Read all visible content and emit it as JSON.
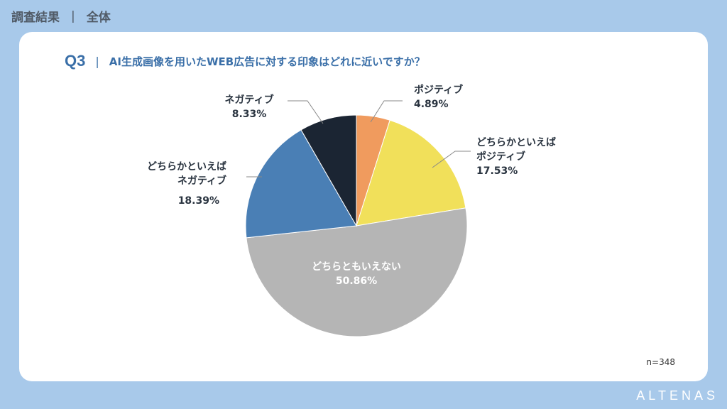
{
  "header": {
    "title": "調査結果",
    "separator": "|",
    "scope": "全体"
  },
  "question": {
    "number": "Q3",
    "separator": "|",
    "text": "AI生成画像を用いたWEB広告に対する印象はどれに近いですか？"
  },
  "sample": "n=348",
  "brand": "ALTENAS",
  "chart_data": {
    "type": "pie",
    "slices": [
      {
        "label": "ポジティブ",
        "value": 4.89,
        "pct_label": "4.89%",
        "color": "#f09b5e"
      },
      {
        "label": "どちらかといえばポジティブ",
        "value": 17.53,
        "pct_label": "17.53%",
        "color": "#f1e05a"
      },
      {
        "label": "どちらともいえない",
        "value": 50.86,
        "pct_label": "50.86%",
        "color": "#b5b5b5"
      },
      {
        "label": "どちらかといえばネガティブ",
        "value": 18.39,
        "pct_label": "18.39%",
        "color": "#4a7fb5"
      },
      {
        "label": "ネガティブ",
        "value": 8.33,
        "pct_label": "8.33%",
        "color": "#1b2533"
      }
    ],
    "start": "12 o'clock",
    "direction": "clockwise",
    "leader_lines": true
  }
}
